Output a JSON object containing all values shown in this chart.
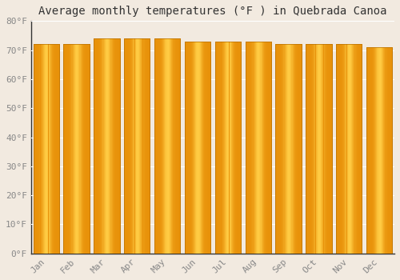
{
  "title": "Average monthly temperatures (°F ) in Quebrada Canoa",
  "months": [
    "Jan",
    "Feb",
    "Mar",
    "Apr",
    "May",
    "Jun",
    "Jul",
    "Aug",
    "Sep",
    "Oct",
    "Nov",
    "Dec"
  ],
  "values": [
    72,
    72,
    74,
    74,
    74,
    73,
    73,
    73,
    72,
    72,
    72,
    71
  ],
  "bar_color_left": "#E8920A",
  "bar_color_mid": "#FFCC44",
  "bar_color_right": "#E8920A",
  "bar_edge_color": "#B87000",
  "background_color": "#F2EAE0",
  "grid_color": "#FFFFFF",
  "ylim": [
    0,
    80
  ],
  "yticks": [
    0,
    10,
    20,
    30,
    40,
    50,
    60,
    70,
    80
  ],
  "ytick_labels": [
    "0°F",
    "10°F",
    "20°F",
    "30°F",
    "40°F",
    "50°F",
    "60°F",
    "70°F",
    "80°F"
  ],
  "title_fontsize": 10,
  "tick_fontsize": 8,
  "font_family": "monospace",
  "bar_width": 0.85,
  "tick_color": "#888888",
  "spine_color": "#333333"
}
